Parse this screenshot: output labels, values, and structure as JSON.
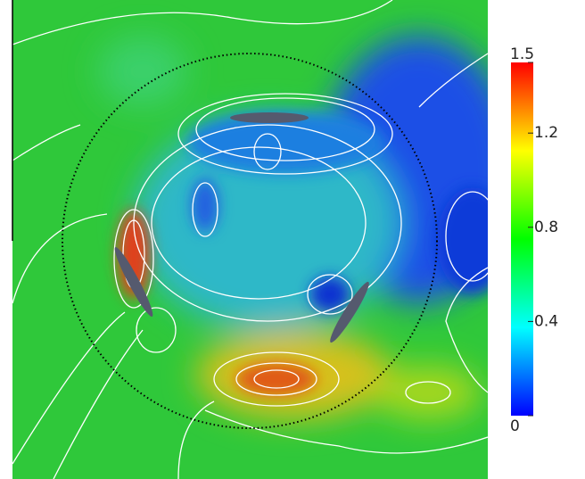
{
  "chart_data": {
    "type": "field",
    "colorbar": {
      "lim": [
        0,
        1.5
      ],
      "ticks": [
        0,
        0.4,
        0.8,
        1.2,
        1.5
      ],
      "colors": [
        "#0000ff",
        "#00ffff",
        "#00ff00",
        "#ffff00",
        "#ff0000"
      ]
    }
  }
}
